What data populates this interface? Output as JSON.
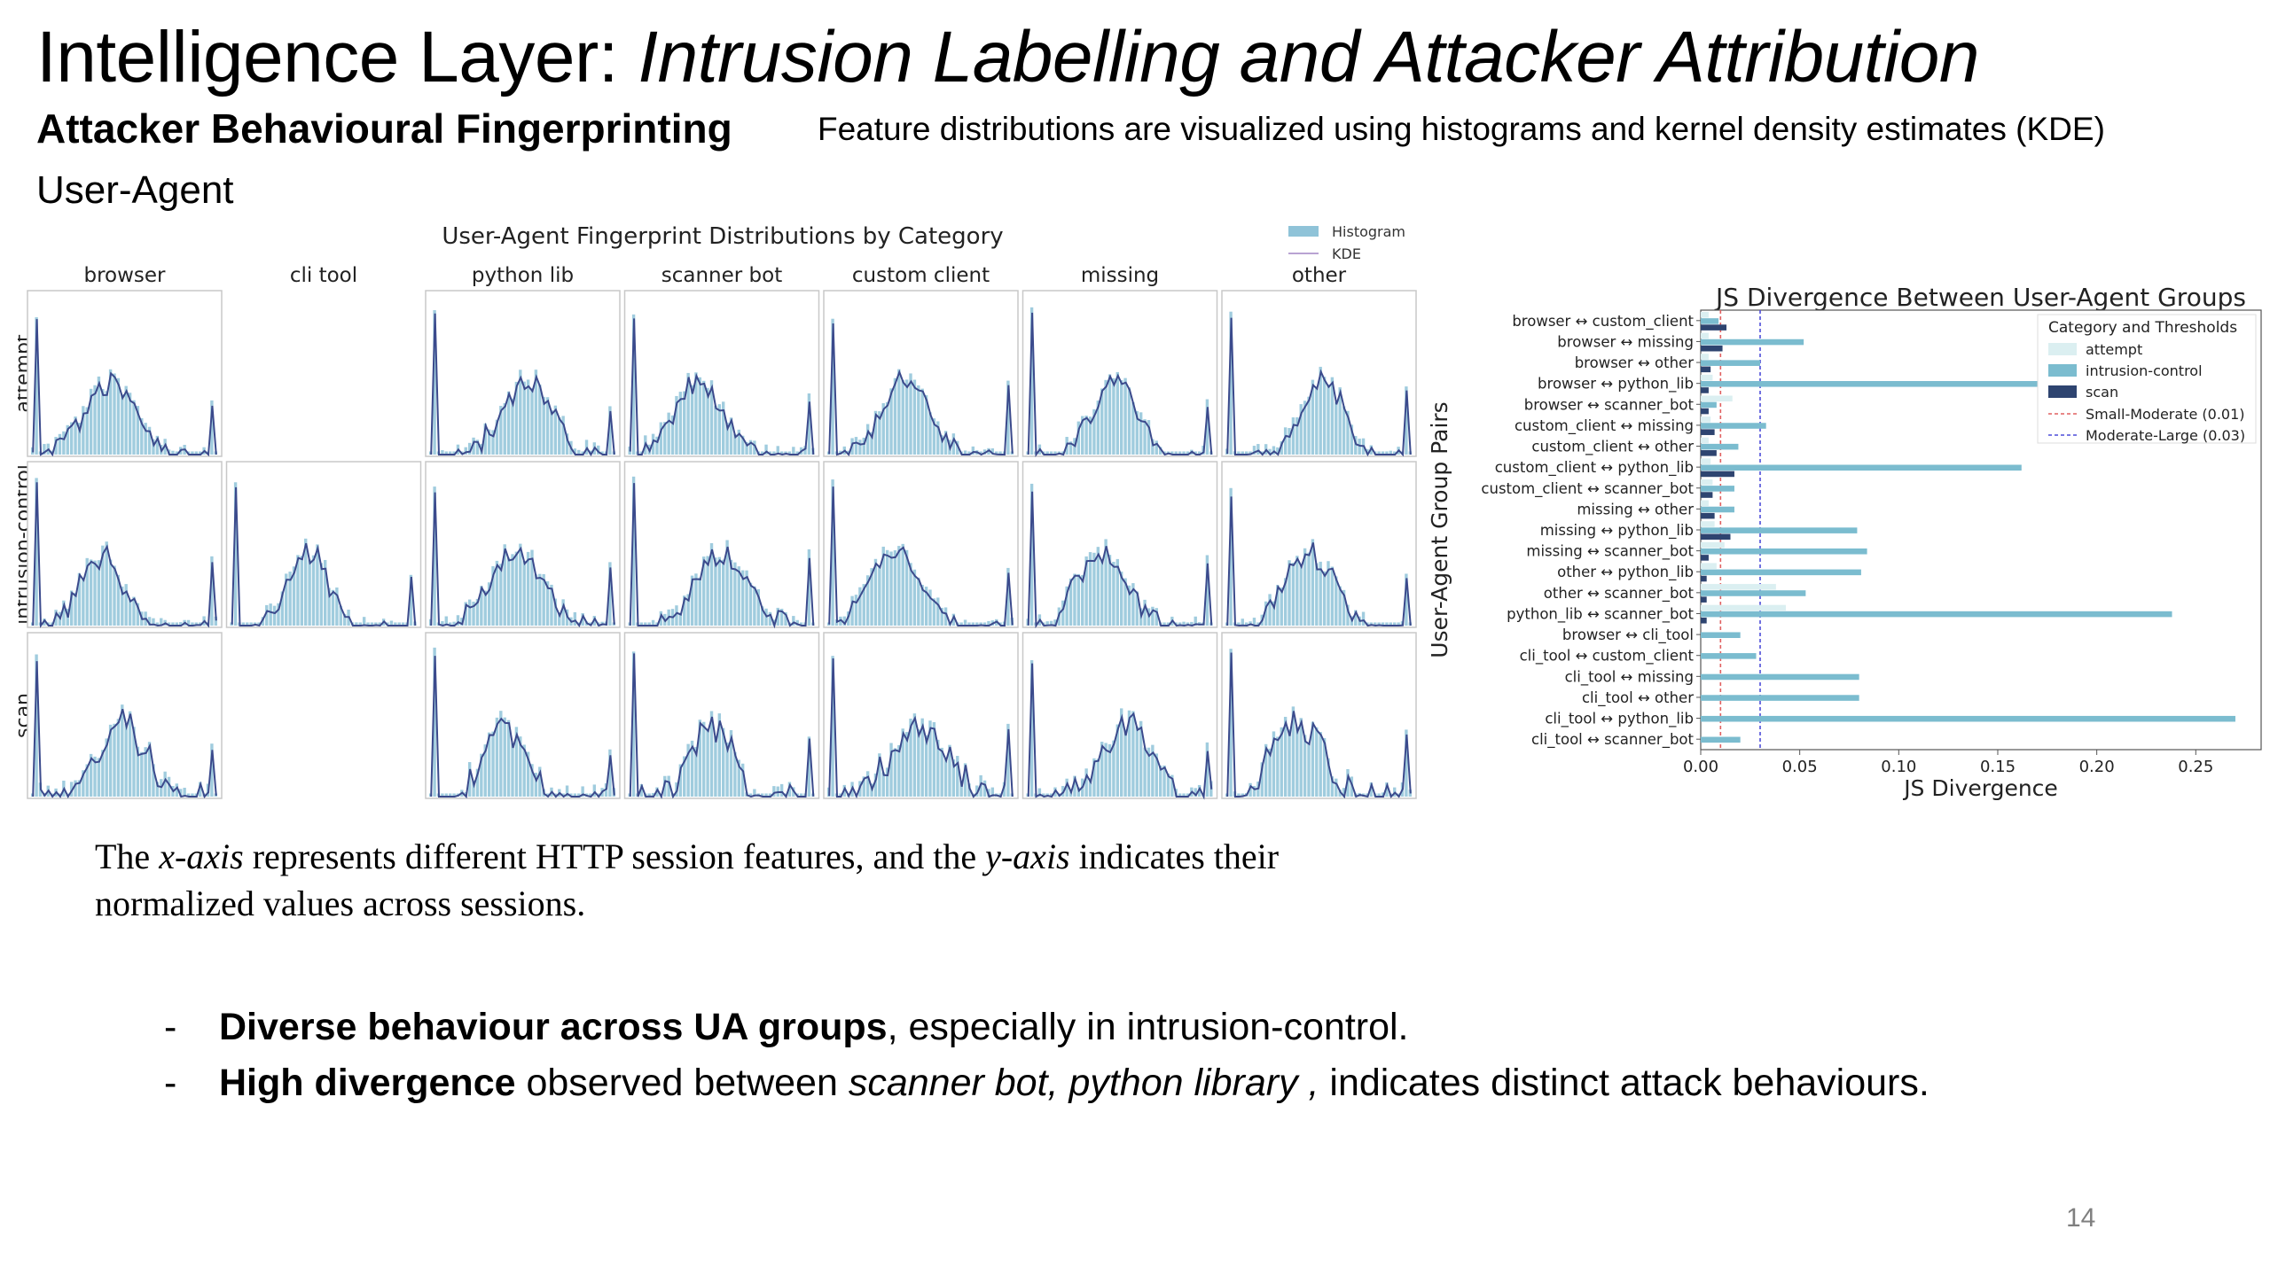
{
  "slide": {
    "title_main": "Intelligence Layer: ",
    "title_italic": "Intrusion Labelling and Attacker Attribution",
    "section_heading": "Attacker Behavioural Fingerprinting",
    "section_note": "Feature distributions are visualized using histograms and kernel density estimates (KDE)",
    "sub_heading": "User-Agent",
    "caption_part1": "The ",
    "caption_x": "x-axis",
    "caption_part2": " represents different HTTP session features, and the ",
    "caption_y": "y-axis",
    "caption_part3": " indicates their normalized values across sessions.",
    "bullet1_bold": "Diverse behaviour across UA groups",
    "bullet1_rest": ", especially in intrusion-control.",
    "bullet2_bold": "High divergence",
    "bullet2_mid": " observed between ",
    "bullet2_italic": "scanner bot, python library ,",
    "bullet2_rest": " indicates distinct attack behaviours.",
    "dash": "-",
    "page_number": "14"
  },
  "colors": {
    "hist_fill": "#8fc3d8",
    "kde_line": "#3b4a8c",
    "attempt": "#dbeff1",
    "intrusion_control": "#7bbccf",
    "scan": "#2e4470",
    "small_moderate": "#e06060",
    "moderate_large": "#4d4dd9"
  },
  "chart_data": [
    {
      "type": "histogram",
      "title": "User-Agent Fingerprint Distributions by Category",
      "columns": [
        "browser",
        "cli tool",
        "python lib",
        "scanner bot",
        "custom client",
        "missing",
        "other"
      ],
      "rows": [
        "attempt",
        "intrusion-control",
        "scan"
      ],
      "present": [
        [
          true,
          false,
          true,
          true,
          true,
          true,
          true
        ],
        [
          true,
          true,
          true,
          true,
          true,
          true,
          true
        ],
        [
          true,
          false,
          true,
          true,
          true,
          true,
          true
        ]
      ],
      "legend": [
        "Histogram",
        "KDE"
      ],
      "legend_position": "top-right",
      "grid": false
    },
    {
      "type": "bar",
      "orientation": "horizontal",
      "title": "JS Divergence Between User-Agent Groups",
      "xlabel": "JS Divergence",
      "ylabel": "User-Agent Group Pairs",
      "xlim": [
        0,
        0.283
      ],
      "xticks": [
        "0.00",
        "0.05",
        "0.10",
        "0.15",
        "0.20",
        "0.25"
      ],
      "xtick_values": [
        0,
        0.05,
        0.1,
        0.15,
        0.2,
        0.25
      ],
      "legend_title": "Category and Thresholds",
      "legend_position": "top-right",
      "categories": [
        "browser ↔ custom_client",
        "browser ↔ missing",
        "browser ↔ other",
        "browser ↔ python_lib",
        "browser ↔ scanner_bot",
        "custom_client ↔ missing",
        "custom_client ↔ other",
        "custom_client ↔ python_lib",
        "custom_client ↔ scanner_bot",
        "missing ↔ other",
        "missing ↔ python_lib",
        "missing ↔ scanner_bot",
        "other ↔ python_lib",
        "other ↔ scanner_bot",
        "python_lib ↔ scanner_bot",
        "browser ↔ cli_tool",
        "cli_tool ↔ custom_client",
        "cli_tool ↔ missing",
        "cli_tool ↔ other",
        "cli_tool ↔ python_lib",
        "cli_tool ↔ scanner_bot"
      ],
      "series": [
        {
          "name": "attempt",
          "values": [
            0.004,
            0.004,
            0.004,
            0.006,
            0.016,
            0.005,
            0.004,
            0.005,
            0.006,
            0.004,
            0.007,
            0.012,
            0.008,
            0.038,
            0.043,
            null,
            null,
            null,
            null,
            null,
            null
          ]
        },
        {
          "name": "intrusion-control",
          "values": [
            0.009,
            0.052,
            0.03,
            0.172,
            0.008,
            0.033,
            0.019,
            0.162,
            0.017,
            0.017,
            0.079,
            0.084,
            0.081,
            0.053,
            0.238,
            0.02,
            0.028,
            0.08,
            0.08,
            0.27,
            0.02
          ]
        },
        {
          "name": "scan",
          "values": [
            0.013,
            0.011,
            0.005,
            0.004,
            0.004,
            0.007,
            0.008,
            0.017,
            0.006,
            0.007,
            0.015,
            0.004,
            0.003,
            0.003,
            0.003,
            null,
            null,
            null,
            null,
            null,
            null
          ]
        }
      ],
      "thresholds": [
        {
          "name": "Small-Moderate (0.01)",
          "value": 0.01
        },
        {
          "name": "Moderate-Large (0.03)",
          "value": 0.03
        }
      ]
    }
  ]
}
